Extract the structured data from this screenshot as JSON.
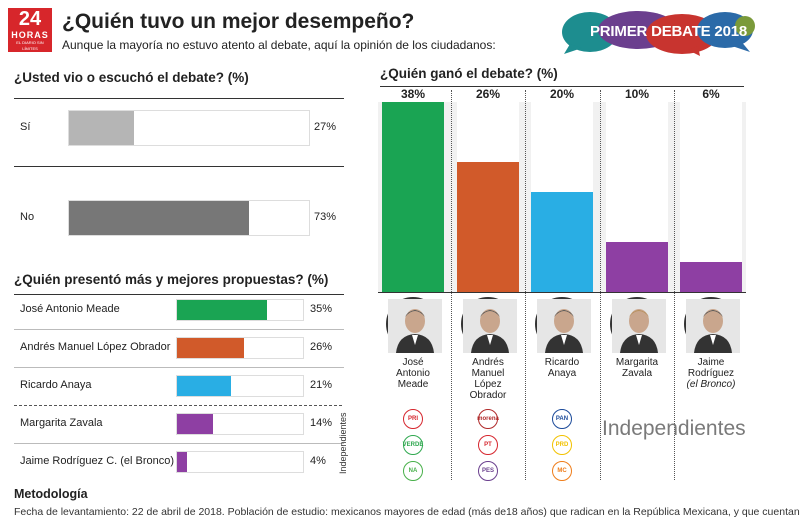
{
  "header": {
    "logo_number": "24",
    "logo_brand": "HORAS",
    "logo_tag": "EL DIARIO SIN LÍMITES",
    "title": "¿Quién tuvo un mejor desempeño?",
    "subtitle": "Aunque la mayoría no estuvo atento al debate, aquí la opinión de los ciudadanos:",
    "badge": "PRIMER DEBATE 2018"
  },
  "colors": {
    "green": "#1aa453",
    "orange": "#d15a2a",
    "blue": "#29aee4",
    "purple": "#8e3fa3",
    "light_gray": "#b5b5b5",
    "dark_gray": "#777777",
    "badge_teal": "#1d8d8f",
    "badge_purple": "#6b3f8e",
    "badge_red": "#c8342f",
    "badge_blue": "#2b6aa8",
    "badge_olive": "#7a9a3a"
  },
  "chart_data": [
    {
      "type": "bar",
      "title": "¿Usted vio o escuchó el debate? (%)",
      "categories": [
        "Sí",
        "No"
      ],
      "values": [
        27,
        73
      ],
      "labels": [
        "27%",
        "73%"
      ],
      "ylim": [
        0,
        100
      ]
    },
    {
      "type": "bar",
      "title": "¿Quién presentó más y mejores propuestas? (%)",
      "categories": [
        "José Antonio Meade",
        "Andrés Manuel López Obrador",
        "Ricardo Anaya",
        "Margarita Zavala",
        "Jaime Rodríguez C. (el Bronco)"
      ],
      "values": [
        35,
        26,
        21,
        14,
        4
      ],
      "labels": [
        "35%",
        "26%",
        "21%",
        "14%",
        "4%"
      ],
      "group_label": "Independientes",
      "ylim": [
        0,
        50
      ]
    },
    {
      "type": "bar",
      "title": "¿Quién ganó el debate? (%)",
      "categories": [
        "José Antonio Meade",
        "Andrés Manuel López Obrador",
        "Ricardo Anaya",
        "Margarita Zavala",
        "Jaime Rodríguez (el Bronco)"
      ],
      "values": [
        38,
        26,
        20,
        10,
        6
      ],
      "labels": [
        "38%",
        "26%",
        "20%",
        "10%",
        "6%"
      ],
      "ylim": [
        0,
        38
      ]
    }
  ],
  "candidates": [
    {
      "name_lines": [
        "José",
        "Antonio",
        "Meade"
      ],
      "parties": [
        "PRI",
        "VERDE",
        "NA"
      ]
    },
    {
      "name_lines": [
        "Andrés",
        "Manuel",
        "López",
        "Obrador"
      ],
      "parties": [
        "morena",
        "PT",
        "PES"
      ]
    },
    {
      "name_lines": [
        "Ricardo",
        "Anaya"
      ],
      "parties": [
        "PAN",
        "PRD",
        "MC"
      ]
    },
    {
      "name_lines": [
        "Margarita",
        "Zavala"
      ],
      "parties": []
    },
    {
      "name_lines": [
        "Jaime",
        "Rodríguez",
        "(el Bronco)"
      ],
      "parties": []
    }
  ],
  "independientes_label": "Independientes",
  "methodology": {
    "title": "Metodología",
    "text": "Fecha de levantamiento: 22 de abril de 2018. Población de estudio: mexicanos mayores de edad (más de18 años) que radican en la República Mexicana, y que cuentan"
  }
}
